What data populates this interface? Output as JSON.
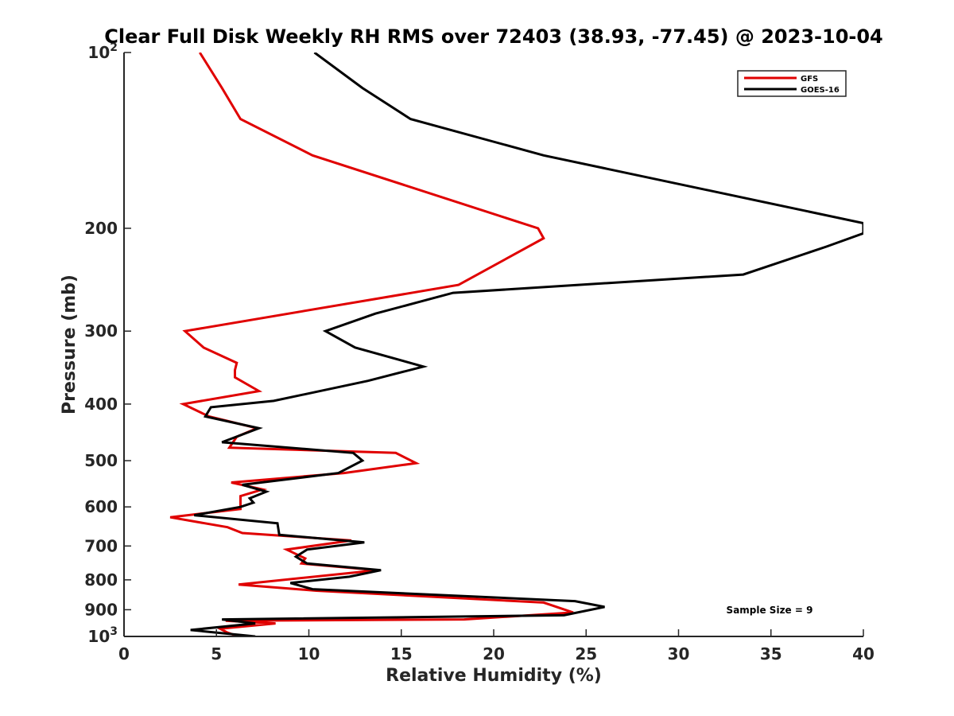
{
  "chart_data": {
    "type": "line",
    "title": "Clear Full Disk Weekly RH RMS over 72403 (38.93, -77.45) @ 2023-10-04",
    "xlabel": "Relative Humidity (%)",
    "ylabel": "Pressure (mb)",
    "xlim": [
      0,
      40
    ],
    "ylim": [
      100,
      1000
    ],
    "y_scale": "log",
    "y_reversed": true,
    "grid": false,
    "legend_position": "top-right",
    "x_ticks": [
      0,
      5,
      10,
      15,
      20,
      25,
      30,
      35,
      40
    ],
    "x_tick_labels": [
      "0",
      "5",
      "10",
      "15",
      "20",
      "25",
      "30",
      "35",
      "40"
    ],
    "y_ticks": [
      100,
      200,
      300,
      400,
      500,
      600,
      700,
      800,
      900,
      1000
    ],
    "y_tick_labels": [
      {
        "base": "10",
        "exp": "2"
      },
      {
        "base": "200",
        "exp": ""
      },
      {
        "base": "300",
        "exp": ""
      },
      {
        "base": "400",
        "exp": ""
      },
      {
        "base": "500",
        "exp": ""
      },
      {
        "base": "600",
        "exp": ""
      },
      {
        "base": "700",
        "exp": ""
      },
      {
        "base": "800",
        "exp": ""
      },
      {
        "base": "900",
        "exp": ""
      },
      {
        "base": "10",
        "exp": "3"
      }
    ],
    "annotation": "Sample Size = 9",
    "series": [
      {
        "name": "GFS",
        "color": "#e00000",
        "points": [
          [
            4.1,
            100
          ],
          [
            5.3,
            115
          ],
          [
            6.3,
            130
          ],
          [
            10.2,
            150
          ],
          [
            22.4,
            200
          ],
          [
            22.7,
            208
          ],
          [
            18.1,
            250
          ],
          [
            3.3,
            300
          ],
          [
            4.3,
            320
          ],
          [
            6.1,
            340
          ],
          [
            6.0,
            350
          ],
          [
            6.0,
            360
          ],
          [
            7.3,
            380
          ],
          [
            3.2,
            400
          ],
          [
            4.6,
            420
          ],
          [
            7.2,
            440
          ],
          [
            6.1,
            455
          ],
          [
            5.7,
            475
          ],
          [
            14.7,
            485
          ],
          [
            15.8,
            505
          ],
          [
            11.9,
            525
          ],
          [
            5.8,
            545
          ],
          [
            7.5,
            560
          ],
          [
            6.3,
            575
          ],
          [
            6.3,
            590
          ],
          [
            6.3,
            605
          ],
          [
            2.5,
            625
          ],
          [
            5.6,
            650
          ],
          [
            6.4,
            665
          ],
          [
            12.3,
            685
          ],
          [
            8.8,
            710
          ],
          [
            9.8,
            735
          ],
          [
            9.6,
            750
          ],
          [
            13.7,
            770
          ],
          [
            6.2,
            815
          ],
          [
            10.4,
            835
          ],
          [
            22.7,
            875
          ],
          [
            24.3,
            910
          ],
          [
            18.4,
            935
          ],
          [
            5.5,
            940
          ],
          [
            8.2,
            950
          ],
          [
            5.2,
            970
          ],
          [
            5.6,
            985
          ],
          [
            6.2,
            1000
          ]
        ]
      },
      {
        "name": "GOES-16",
        "color": "#000000",
        "points": [
          [
            10.3,
            100
          ],
          [
            12.9,
            115
          ],
          [
            15.5,
            130
          ],
          [
            22.7,
            150
          ],
          [
            40.0,
            196
          ],
          [
            40.0,
            204
          ],
          [
            38.0,
            215
          ],
          [
            33.5,
            240
          ],
          [
            17.8,
            258
          ],
          [
            13.6,
            280
          ],
          [
            10.9,
            300
          ],
          [
            12.5,
            320
          ],
          [
            16.2,
            345
          ],
          [
            13.2,
            365
          ],
          [
            8.1,
            395
          ],
          [
            4.7,
            405
          ],
          [
            4.4,
            420
          ],
          [
            7.3,
            440
          ],
          [
            5.3,
            465
          ],
          [
            12.4,
            485
          ],
          [
            12.9,
            500
          ],
          [
            11.6,
            525
          ],
          [
            6.4,
            550
          ],
          [
            7.7,
            565
          ],
          [
            6.8,
            580
          ],
          [
            7.0,
            590
          ],
          [
            6.3,
            600
          ],
          [
            3.8,
            620
          ],
          [
            8.3,
            640
          ],
          [
            8.4,
            670
          ],
          [
            13.0,
            690
          ],
          [
            9.9,
            710
          ],
          [
            9.3,
            730
          ],
          [
            9.9,
            750
          ],
          [
            13.9,
            770
          ],
          [
            12.2,
            790
          ],
          [
            9.0,
            810
          ],
          [
            10.2,
            830
          ],
          [
            24.4,
            870
          ],
          [
            26.0,
            890
          ],
          [
            23.8,
            920
          ],
          [
            5.3,
            935
          ],
          [
            7.1,
            950
          ],
          [
            3.6,
            975
          ],
          [
            7.1,
            1000
          ]
        ]
      }
    ]
  }
}
